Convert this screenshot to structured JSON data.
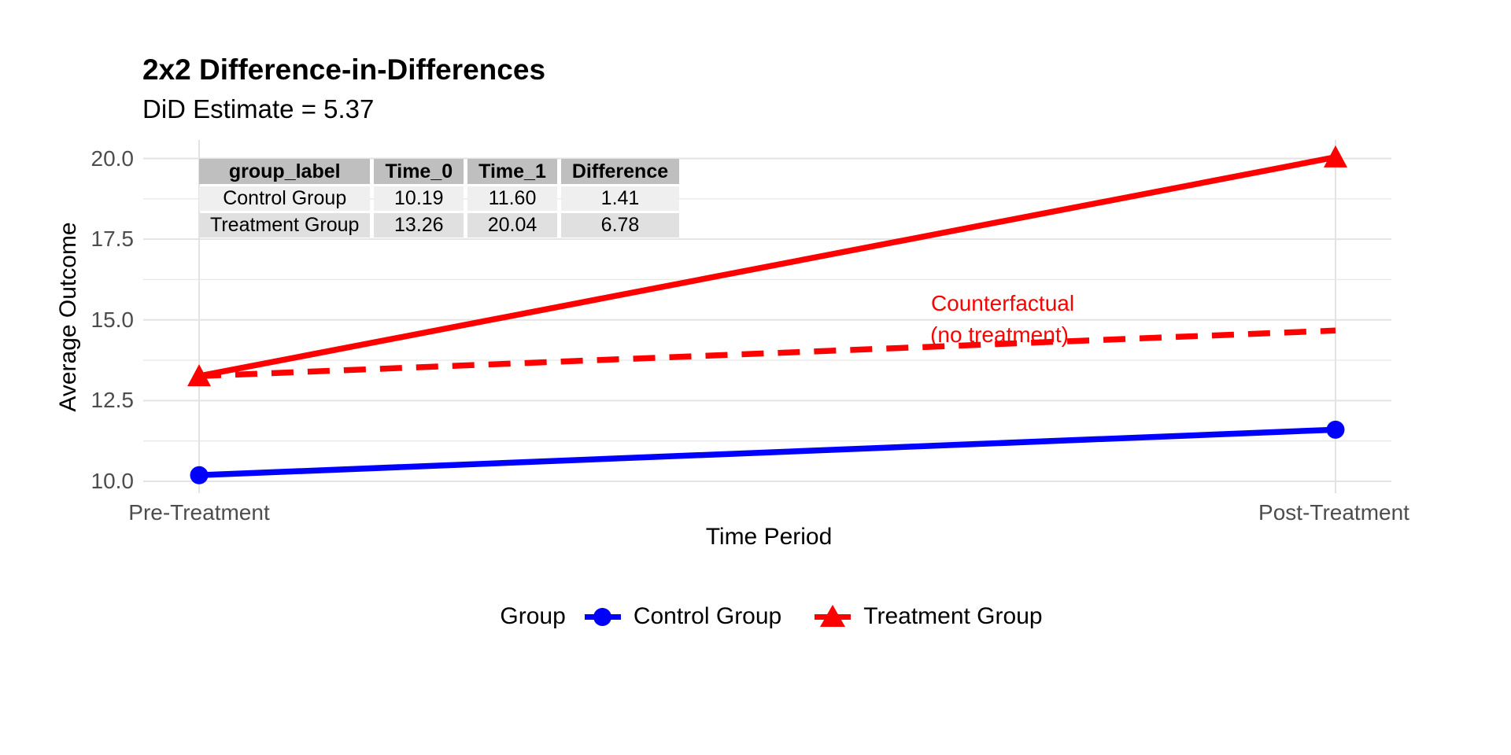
{
  "chart_data": {
    "type": "line",
    "title": "2x2 Difference-in-Differences",
    "subtitle": "DiD Estimate = 5.37",
    "did_estimate": 5.37,
    "xlabel": "Time Period",
    "ylabel": "Average Outcome",
    "categories": [
      "Pre-Treatment",
      "Post-Treatment"
    ],
    "y_ticks": [
      {
        "v": 20.0,
        "label": "20.0"
      },
      {
        "v": 17.5,
        "label": "17.5"
      },
      {
        "v": 15.0,
        "label": "15.0"
      },
      {
        "v": 12.5,
        "label": "12.5"
      },
      {
        "v": 10.0,
        "label": "10.0"
      }
    ],
    "minor_y_ticks": [
      18.75,
      16.25,
      13.75,
      11.25
    ],
    "ylim": [
      9.6,
      20.6
    ],
    "grid": {
      "horizontal": "major+minor",
      "vertical": "major-at-categories",
      "color_major": "#e3e3e3",
      "color_minor": "#e9e9e9"
    },
    "series": [
      {
        "name": "Control Group",
        "color": "#0000ff",
        "marker": "circle",
        "style": "solid",
        "values": [
          10.19,
          11.6
        ]
      },
      {
        "name": "Treatment Group",
        "color": "#ff0000",
        "marker": "triangle",
        "style": "solid",
        "values": [
          13.26,
          20.04
        ]
      },
      {
        "name": "Counterfactual (no treatment)",
        "color": "#ff0000",
        "marker": "none",
        "style": "dashed",
        "values": [
          13.26,
          14.67
        ]
      }
    ],
    "annotation": {
      "line1": "Counterfactual",
      "line2": "(no treatment)",
      "color": "#ff0000"
    },
    "legend": {
      "position": "bottom",
      "title": "Group",
      "entries": [
        {
          "label": "Control Group",
          "color": "#0000ff",
          "marker": "circle"
        },
        {
          "label": "Treatment Group",
          "color": "#ff0000",
          "marker": "triangle"
        }
      ]
    }
  },
  "table": {
    "headers": [
      "group_label",
      "Time_0",
      "Time_1",
      "Difference"
    ],
    "rows": [
      [
        "Control Group",
        "10.19",
        "11.60",
        "1.41"
      ],
      [
        "Treatment Group",
        "13.26",
        "20.04",
        "6.78"
      ]
    ],
    "header_bg": "#bfbfbf",
    "row_bgs": [
      "#efefef",
      "#e0e0e0"
    ]
  },
  "colors": {
    "control": "#0000ff",
    "treatment": "#ff0000",
    "axis_text": "#4d4d4d",
    "background": "#ffffff"
  }
}
